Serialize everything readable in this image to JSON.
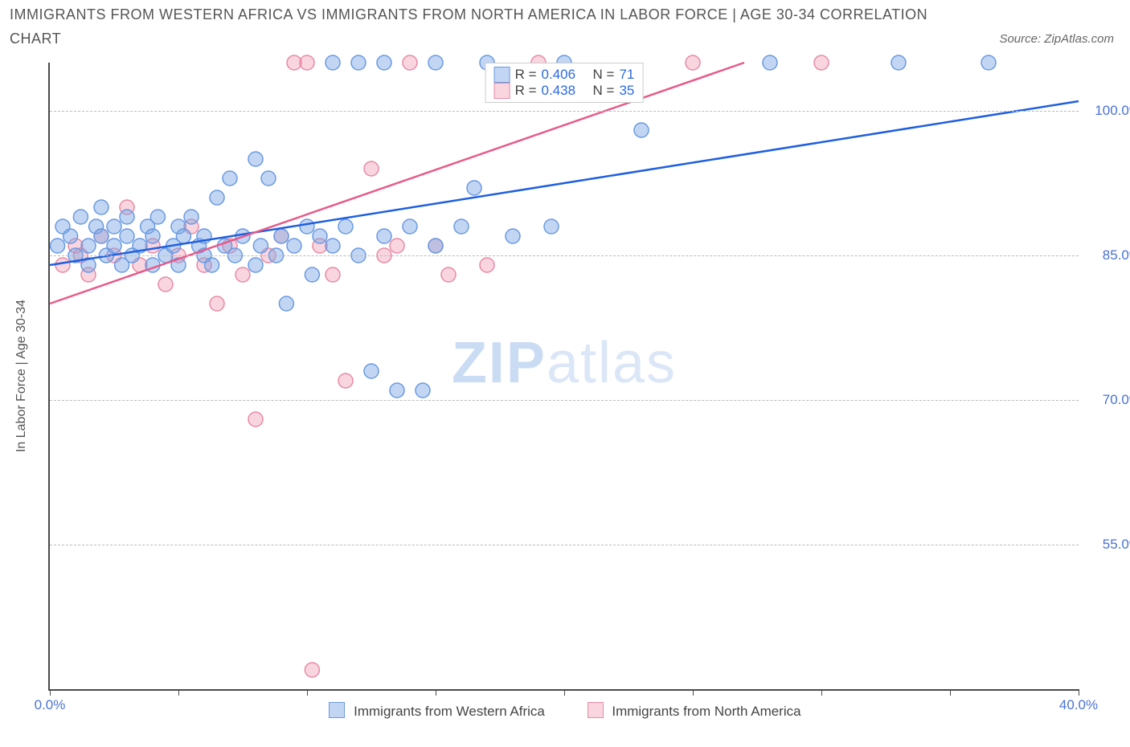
{
  "title": "IMMIGRANTS FROM WESTERN AFRICA VS IMMIGRANTS FROM NORTH AMERICA IN LABOR FORCE | AGE 30-34 CORRELATION",
  "subtitle": "CHART",
  "source_label": "Source: ZipAtlas.com",
  "y_axis_label": "In Labor Force | Age 30-34",
  "watermark_zip": "ZIP",
  "watermark_atlas": "atlas",
  "chart": {
    "type": "scatter",
    "background_color": "#ffffff",
    "grid_color": "#bbbbbb",
    "axis_color": "#4a4a4a",
    "tick_label_color": "#4a72d4",
    "xlim": [
      0,
      40
    ],
    "ylim": [
      40,
      105
    ],
    "y_ticks": [
      55,
      70,
      85,
      100
    ],
    "y_tick_labels": [
      "55.0%",
      "70.0%",
      "85.0%",
      "100.0%"
    ],
    "x_ticks": [
      0,
      5,
      10,
      15,
      20,
      25,
      30,
      35,
      40
    ],
    "x_tick_labels": [
      "0.0%",
      "",
      "",
      "",
      "",
      "",
      "",
      "",
      "40.0%"
    ],
    "marker_radius": 9,
    "marker_stroke_width": 1.5,
    "line_width": 2.5
  },
  "series_a": {
    "label": "Immigrants from Western Africa",
    "color_fill": "rgba(120,165,230,0.45)",
    "color_stroke": "#6a9ae0",
    "line_color": "#1f5fe0",
    "regression": {
      "x1": 0,
      "y1": 84,
      "x2": 40,
      "y2": 101
    },
    "stats_R": "0.406",
    "stats_N": "71",
    "points": [
      [
        0.3,
        86
      ],
      [
        0.5,
        88
      ],
      [
        0.8,
        87
      ],
      [
        1.0,
        85
      ],
      [
        1.2,
        89
      ],
      [
        1.5,
        86
      ],
      [
        1.5,
        84
      ],
      [
        1.8,
        88
      ],
      [
        2.0,
        87
      ],
      [
        2.0,
        90
      ],
      [
        2.2,
        85
      ],
      [
        2.5,
        86
      ],
      [
        2.5,
        88
      ],
      [
        2.8,
        84
      ],
      [
        3.0,
        87
      ],
      [
        3.0,
        89
      ],
      [
        3.2,
        85
      ],
      [
        3.5,
        86
      ],
      [
        3.8,
        88
      ],
      [
        4.0,
        84
      ],
      [
        4.0,
        87
      ],
      [
        4.2,
        89
      ],
      [
        4.5,
        85
      ],
      [
        4.8,
        86
      ],
      [
        5.0,
        88
      ],
      [
        5.0,
        84
      ],
      [
        5.2,
        87
      ],
      [
        5.5,
        89
      ],
      [
        5.8,
        86
      ],
      [
        6.0,
        85
      ],
      [
        6.0,
        87
      ],
      [
        6.3,
        84
      ],
      [
        6.5,
        91
      ],
      [
        6.8,
        86
      ],
      [
        7.0,
        93
      ],
      [
        7.2,
        85
      ],
      [
        7.5,
        87
      ],
      [
        8.0,
        95
      ],
      [
        8.0,
        84
      ],
      [
        8.2,
        86
      ],
      [
        8.5,
        93
      ],
      [
        8.8,
        85
      ],
      [
        9.0,
        87
      ],
      [
        9.2,
        80
      ],
      [
        9.5,
        86
      ],
      [
        10.0,
        88
      ],
      [
        10.2,
        83
      ],
      [
        10.5,
        87
      ],
      [
        11.0,
        105
      ],
      [
        11.0,
        86
      ],
      [
        11.5,
        88
      ],
      [
        12.0,
        85
      ],
      [
        12.0,
        105
      ],
      [
        12.5,
        73
      ],
      [
        13.0,
        87
      ],
      [
        13.0,
        105
      ],
      [
        13.5,
        71
      ],
      [
        14.0,
        88
      ],
      [
        14.5,
        71
      ],
      [
        15.0,
        86
      ],
      [
        15.0,
        105
      ],
      [
        16.0,
        88
      ],
      [
        16.5,
        92
      ],
      [
        17.0,
        105
      ],
      [
        18.0,
        87
      ],
      [
        19.5,
        88
      ],
      [
        20.0,
        105
      ],
      [
        23.0,
        98
      ],
      [
        28.0,
        105
      ],
      [
        33.0,
        105
      ],
      [
        36.5,
        105
      ]
    ]
  },
  "series_b": {
    "label": "Immigrants from North America",
    "color_fill": "rgba(240,150,175,0.40)",
    "color_stroke": "#e88aa5",
    "line_color": "#e85a8a",
    "regression": {
      "x1": 0,
      "y1": 80,
      "x2": 27,
      "y2": 105
    },
    "stats_R": "0.438",
    "stats_N": "35",
    "points": [
      [
        0.5,
        84
      ],
      [
        1.0,
        86
      ],
      [
        1.2,
        85
      ],
      [
        1.5,
        83
      ],
      [
        2.0,
        87
      ],
      [
        2.5,
        85
      ],
      [
        3.0,
        90
      ],
      [
        3.5,
        84
      ],
      [
        4.0,
        86
      ],
      [
        4.5,
        82
      ],
      [
        5.0,
        85
      ],
      [
        5.5,
        88
      ],
      [
        6.0,
        84
      ],
      [
        6.5,
        80
      ],
      [
        7.0,
        86
      ],
      [
        7.5,
        83
      ],
      [
        8.0,
        68
      ],
      [
        8.5,
        85
      ],
      [
        9.0,
        87
      ],
      [
        9.5,
        105
      ],
      [
        10.0,
        105
      ],
      [
        10.2,
        42
      ],
      [
        10.5,
        86
      ],
      [
        11.0,
        83
      ],
      [
        11.5,
        72
      ],
      [
        12.5,
        94
      ],
      [
        13.0,
        85
      ],
      [
        13.5,
        86
      ],
      [
        14.0,
        105
      ],
      [
        15.0,
        86
      ],
      [
        15.5,
        83
      ],
      [
        17.0,
        84
      ],
      [
        19.0,
        105
      ],
      [
        25.0,
        105
      ],
      [
        30.0,
        105
      ]
    ]
  },
  "stats_box": {
    "R_label": "R =",
    "N_label": "N ="
  },
  "legend": {
    "series_a_label": "Immigrants from Western Africa",
    "series_b_label": "Immigrants from North America"
  }
}
